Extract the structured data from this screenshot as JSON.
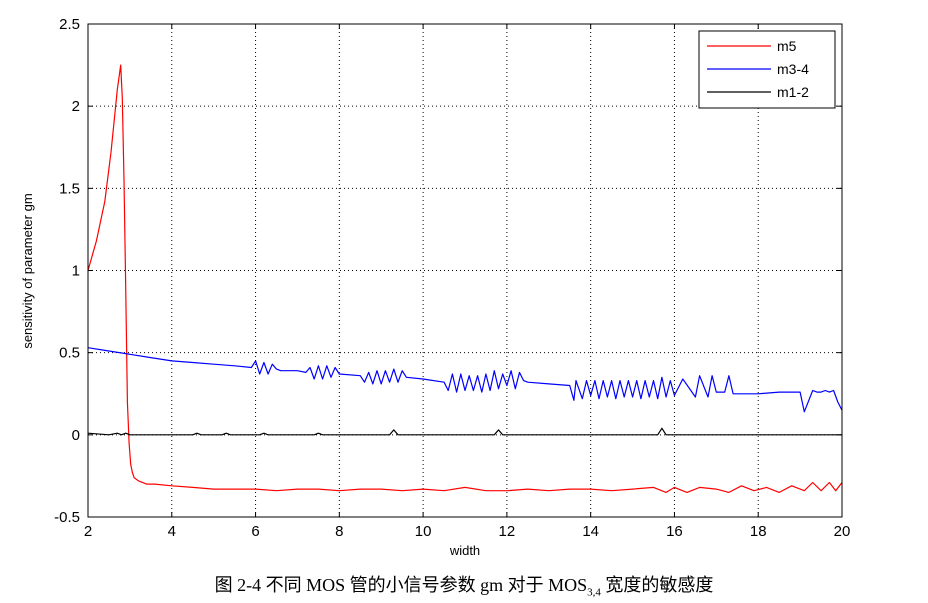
{
  "chart_data": {
    "type": "line",
    "title": "",
    "xlabel": "width",
    "ylabel": "sensitivity of parameter gm",
    "xlim": [
      2,
      20
    ],
    "ylim": [
      -0.5,
      2.5
    ],
    "xticks": [
      2,
      4,
      6,
      8,
      10,
      12,
      14,
      16,
      18,
      20
    ],
    "yticks": [
      -0.5,
      0,
      0.5,
      1,
      1.5,
      2,
      2.5
    ],
    "xtick_labels": [
      "2",
      "4",
      "6",
      "8",
      "10",
      "12",
      "14",
      "16",
      "18",
      "20"
    ],
    "ytick_labels": [
      "-0.5",
      "0",
      "0.5",
      "1",
      "1.5",
      "2",
      "2.5"
    ],
    "grid": true,
    "legend_position": "top-right",
    "series": [
      {
        "name": "m5",
        "color": "#ff0000",
        "x": [
          2.0,
          2.2,
          2.4,
          2.55,
          2.7,
          2.78,
          2.82,
          2.86,
          2.9,
          2.94,
          2.98,
          3.02,
          3.06,
          3.1,
          3.2,
          3.4,
          3.6,
          4.0,
          4.5,
          5.0,
          5.5,
          6.0,
          6.5,
          7.0,
          7.5,
          8.0,
          8.5,
          9.0,
          9.5,
          10.0,
          10.5,
          11.0,
          11.5,
          12.0,
          12.5,
          13.0,
          13.5,
          14.0,
          14.5,
          15.0,
          15.5,
          15.8,
          16.0,
          16.3,
          16.6,
          17.0,
          17.3,
          17.6,
          17.9,
          18.2,
          18.5,
          18.8,
          19.1,
          19.3,
          19.5,
          19.7,
          19.85,
          20.0
        ],
        "y": [
          1.0,
          1.18,
          1.42,
          1.72,
          2.1,
          2.25,
          2.05,
          1.55,
          0.9,
          0.2,
          -0.05,
          -0.18,
          -0.23,
          -0.26,
          -0.28,
          -0.3,
          -0.3,
          -0.31,
          -0.32,
          -0.33,
          -0.33,
          -0.33,
          -0.34,
          -0.33,
          -0.33,
          -0.34,
          -0.33,
          -0.33,
          -0.34,
          -0.33,
          -0.34,
          -0.32,
          -0.34,
          -0.34,
          -0.33,
          -0.34,
          -0.33,
          -0.33,
          -0.34,
          -0.33,
          -0.32,
          -0.35,
          -0.32,
          -0.35,
          -0.32,
          -0.33,
          -0.35,
          -0.31,
          -0.34,
          -0.32,
          -0.35,
          -0.31,
          -0.34,
          -0.29,
          -0.34,
          -0.29,
          -0.34,
          -0.29
        ]
      },
      {
        "name": "m3-4",
        "color": "#0000ff",
        "x": [
          2.0,
          2.5,
          3.0,
          3.5,
          4.0,
          4.5,
          5.0,
          5.5,
          5.9,
          6.0,
          6.1,
          6.2,
          6.3,
          6.4,
          6.5,
          6.6,
          7.0,
          7.2,
          7.3,
          7.4,
          7.5,
          7.6,
          7.7,
          7.8,
          7.9,
          8.0,
          8.5,
          8.6,
          8.7,
          8.8,
          8.9,
          9.0,
          9.1,
          9.2,
          9.3,
          9.4,
          9.5,
          9.6,
          10.0,
          10.5,
          10.6,
          10.7,
          10.8,
          10.9,
          11.0,
          11.1,
          11.2,
          11.3,
          11.4,
          11.5,
          11.6,
          11.7,
          11.8,
          11.9,
          12.0,
          12.1,
          12.2,
          12.3,
          12.4,
          12.5,
          13.0,
          13.5,
          13.6,
          13.65,
          13.8,
          13.9,
          14.0,
          14.1,
          14.2,
          14.3,
          14.4,
          14.5,
          14.6,
          14.7,
          14.8,
          14.9,
          15.0,
          15.1,
          15.2,
          15.3,
          15.4,
          15.5,
          15.6,
          15.7,
          15.8,
          15.9,
          16.0,
          16.2,
          16.5,
          16.6,
          16.8,
          16.9,
          17.0,
          17.2,
          17.3,
          17.4,
          17.5,
          18.0,
          18.5,
          19.0,
          19.1,
          19.3,
          19.4,
          19.5,
          19.6,
          19.7,
          19.8,
          19.9,
          20.0
        ],
        "y": [
          0.53,
          0.51,
          0.49,
          0.47,
          0.45,
          0.44,
          0.43,
          0.42,
          0.41,
          0.45,
          0.37,
          0.44,
          0.37,
          0.43,
          0.4,
          0.39,
          0.39,
          0.38,
          0.41,
          0.34,
          0.42,
          0.34,
          0.42,
          0.35,
          0.41,
          0.37,
          0.36,
          0.32,
          0.38,
          0.31,
          0.39,
          0.31,
          0.39,
          0.32,
          0.4,
          0.32,
          0.39,
          0.35,
          0.34,
          0.32,
          0.27,
          0.37,
          0.26,
          0.37,
          0.27,
          0.36,
          0.27,
          0.36,
          0.26,
          0.37,
          0.27,
          0.39,
          0.28,
          0.37,
          0.3,
          0.39,
          0.28,
          0.38,
          0.33,
          0.32,
          0.31,
          0.3,
          0.21,
          0.33,
          0.22,
          0.33,
          0.24,
          0.33,
          0.22,
          0.33,
          0.23,
          0.33,
          0.22,
          0.33,
          0.23,
          0.33,
          0.23,
          0.33,
          0.22,
          0.33,
          0.23,
          0.33,
          0.22,
          0.35,
          0.23,
          0.33,
          0.24,
          0.34,
          0.23,
          0.36,
          0.23,
          0.36,
          0.26,
          0.26,
          0.36,
          0.25,
          0.25,
          0.25,
          0.26,
          0.26,
          0.14,
          0.27,
          0.26,
          0.26,
          0.27,
          0.26,
          0.27,
          0.2,
          0.15
        ]
      },
      {
        "name": "m1-2",
        "color": "#000000",
        "x": [
          2.0,
          2.5,
          2.7,
          2.8,
          2.9,
          3.0,
          3.5,
          4.0,
          4.5,
          4.6,
          4.7,
          5.0,
          5.2,
          5.3,
          5.4,
          6.0,
          6.1,
          6.2,
          6.3,
          7.0,
          7.4,
          7.5,
          7.6,
          8.0,
          9.2,
          9.3,
          9.4,
          10.0,
          11.7,
          11.8,
          11.9,
          12.0,
          15.6,
          15.7,
          15.8,
          16.0,
          20.0
        ],
        "y": [
          0.01,
          0.0,
          0.01,
          0.0,
          0.01,
          0.0,
          0.0,
          0.0,
          0.0,
          0.01,
          0.0,
          0.0,
          0.0,
          0.01,
          0.0,
          0.0,
          0.0,
          0.01,
          0.0,
          0.0,
          0.0,
          0.01,
          0.0,
          0.0,
          0.0,
          0.03,
          0.0,
          0.0,
          0.0,
          0.03,
          0.0,
          0.0,
          0.0,
          0.04,
          0.0,
          0.0,
          0.0
        ]
      }
    ]
  },
  "caption": {
    "prefix": "图 2-4 不同 MOS 管的小信号参数 gm 对于 MOS",
    "subscript": "3,4",
    "suffix": " 宽度的敏感度"
  }
}
